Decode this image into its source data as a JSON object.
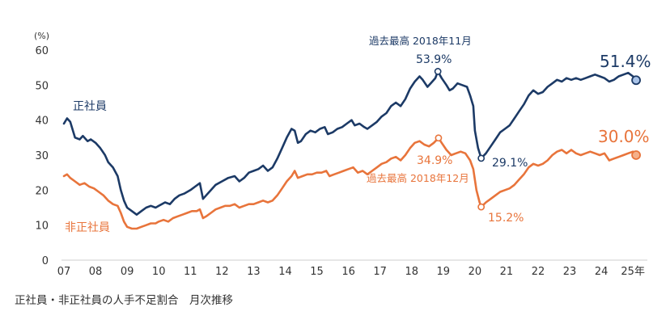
{
  "caption": "正社員・非正社員の人手不足割合　月次推移",
  "chart_data": {
    "type": "line",
    "title": "",
    "xlabel": "",
    "ylabel": "(%)",
    "ylim": [
      0,
      60
    ],
    "yticks": [
      0,
      10,
      20,
      30,
      40,
      50,
      60
    ],
    "xlim": [
      2007.0,
      2025.2
    ],
    "xticks": [
      {
        "value": 2007,
        "label": "07"
      },
      {
        "value": 2008,
        "label": "08"
      },
      {
        "value": 2009,
        "label": "09"
      },
      {
        "value": 2010,
        "label": "10"
      },
      {
        "value": 2011,
        "label": "11"
      },
      {
        "value": 2012,
        "label": "12"
      },
      {
        "value": 2013,
        "label": "13"
      },
      {
        "value": 2014,
        "label": "14"
      },
      {
        "value": 2015,
        "label": "15"
      },
      {
        "value": 2016,
        "label": "16"
      },
      {
        "value": 2017,
        "label": "17"
      },
      {
        "value": 2018,
        "label": "18"
      },
      {
        "value": 2019,
        "label": "19"
      },
      {
        "value": 2020,
        "label": "20"
      },
      {
        "value": 2021,
        "label": "21"
      },
      {
        "value": 2022,
        "label": "22"
      },
      {
        "value": 2023,
        "label": "23"
      },
      {
        "value": 2024,
        "label": "24"
      },
      {
        "value": 2025,
        "label": "25年"
      }
    ],
    "grid": false,
    "series": [
      {
        "name": "正社員",
        "color": "#1c3a66",
        "points": [
          [
            2007.0,
            39.0
          ],
          [
            2007.1,
            40.5
          ],
          [
            2007.2,
            39.5
          ],
          [
            2007.35,
            35.0
          ],
          [
            2007.5,
            34.5
          ],
          [
            2007.6,
            35.5
          ],
          [
            2007.75,
            34.0
          ],
          [
            2007.85,
            34.5
          ],
          [
            2008.0,
            33.5
          ],
          [
            2008.15,
            32.0
          ],
          [
            2008.3,
            30.0
          ],
          [
            2008.4,
            28.0
          ],
          [
            2008.55,
            26.5
          ],
          [
            2008.7,
            24.0
          ],
          [
            2008.8,
            20.0
          ],
          [
            2008.9,
            17.0
          ],
          [
            2009.0,
            15.0
          ],
          [
            2009.15,
            14.0
          ],
          [
            2009.3,
            13.0
          ],
          [
            2009.45,
            14.0
          ],
          [
            2009.6,
            15.0
          ],
          [
            2009.75,
            15.5
          ],
          [
            2009.9,
            15.0
          ],
          [
            2010.0,
            15.5
          ],
          [
            2010.2,
            16.5
          ],
          [
            2010.35,
            16.0
          ],
          [
            2010.5,
            17.5
          ],
          [
            2010.65,
            18.5
          ],
          [
            2010.8,
            19.0
          ],
          [
            2011.0,
            20.0
          ],
          [
            2011.15,
            21.0
          ],
          [
            2011.3,
            22.0
          ],
          [
            2011.4,
            17.5
          ],
          [
            2011.5,
            18.5
          ],
          [
            2011.65,
            20.0
          ],
          [
            2011.8,
            21.5
          ],
          [
            2012.0,
            22.5
          ],
          [
            2012.2,
            23.5
          ],
          [
            2012.4,
            24.0
          ],
          [
            2012.55,
            22.5
          ],
          [
            2012.7,
            23.5
          ],
          [
            2012.85,
            25.0
          ],
          [
            2013.0,
            25.5
          ],
          [
            2013.15,
            26.0
          ],
          [
            2013.3,
            27.0
          ],
          [
            2013.45,
            25.5
          ],
          [
            2013.6,
            26.5
          ],
          [
            2013.75,
            29.0
          ],
          [
            2013.9,
            32.0
          ],
          [
            2014.05,
            35.0
          ],
          [
            2014.2,
            37.5
          ],
          [
            2014.3,
            37.0
          ],
          [
            2014.4,
            33.5
          ],
          [
            2014.5,
            34.0
          ],
          [
            2014.65,
            36.0
          ],
          [
            2014.8,
            37.0
          ],
          [
            2014.95,
            36.5
          ],
          [
            2015.1,
            37.5
          ],
          [
            2015.25,
            38.0
          ],
          [
            2015.35,
            36.0
          ],
          [
            2015.5,
            36.5
          ],
          [
            2015.65,
            37.5
          ],
          [
            2015.8,
            38.0
          ],
          [
            2015.95,
            39.0
          ],
          [
            2016.1,
            40.0
          ],
          [
            2016.2,
            38.5
          ],
          [
            2016.35,
            39.0
          ],
          [
            2016.5,
            38.0
          ],
          [
            2016.6,
            37.5
          ],
          [
            2016.75,
            38.5
          ],
          [
            2016.9,
            39.5
          ],
          [
            2017.05,
            41.0
          ],
          [
            2017.2,
            42.0
          ],
          [
            2017.35,
            44.0
          ],
          [
            2017.5,
            45.0
          ],
          [
            2017.65,
            44.0
          ],
          [
            2017.8,
            46.0
          ],
          [
            2017.95,
            49.0
          ],
          [
            2018.1,
            51.0
          ],
          [
            2018.25,
            52.5
          ],
          [
            2018.35,
            51.5
          ],
          [
            2018.5,
            49.5
          ],
          [
            2018.6,
            50.5
          ],
          [
            2018.75,
            52.0
          ],
          [
            2018.83,
            53.9
          ],
          [
            2018.95,
            52.0
          ],
          [
            2019.1,
            50.0
          ],
          [
            2019.2,
            48.5
          ],
          [
            2019.3,
            49.0
          ],
          [
            2019.45,
            50.5
          ],
          [
            2019.6,
            50.0
          ],
          [
            2019.75,
            49.5
          ],
          [
            2019.85,
            47.0
          ],
          [
            2019.95,
            44.0
          ],
          [
            2020.0,
            37.0
          ],
          [
            2020.1,
            32.0
          ],
          [
            2020.2,
            29.1
          ],
          [
            2020.35,
            30.5
          ],
          [
            2020.5,
            32.5
          ],
          [
            2020.65,
            34.5
          ],
          [
            2020.8,
            36.5
          ],
          [
            2020.95,
            37.5
          ],
          [
            2021.1,
            38.5
          ],
          [
            2021.25,
            40.5
          ],
          [
            2021.4,
            42.5
          ],
          [
            2021.55,
            44.5
          ],
          [
            2021.7,
            47.0
          ],
          [
            2021.85,
            48.5
          ],
          [
            2022.0,
            47.5
          ],
          [
            2022.15,
            48.0
          ],
          [
            2022.3,
            49.5
          ],
          [
            2022.45,
            50.5
          ],
          [
            2022.6,
            51.5
          ],
          [
            2022.75,
            51.0
          ],
          [
            2022.9,
            52.0
          ],
          [
            2023.05,
            51.5
          ],
          [
            2023.2,
            52.0
          ],
          [
            2023.35,
            51.5
          ],
          [
            2023.5,
            52.0
          ],
          [
            2023.65,
            52.5
          ],
          [
            2023.8,
            53.0
          ],
          [
            2023.95,
            52.5
          ],
          [
            2024.1,
            52.0
          ],
          [
            2024.25,
            51.0
          ],
          [
            2024.4,
            51.5
          ],
          [
            2024.55,
            52.5
          ],
          [
            2024.7,
            53.0
          ],
          [
            2024.85,
            53.5
          ],
          [
            2025.0,
            52.5
          ],
          [
            2025.1,
            51.4
          ]
        ]
      },
      {
        "name": "非正社員",
        "color": "#e8743b",
        "points": [
          [
            2007.0,
            24.0
          ],
          [
            2007.1,
            24.5
          ],
          [
            2007.2,
            23.5
          ],
          [
            2007.35,
            22.5
          ],
          [
            2007.5,
            21.5
          ],
          [
            2007.65,
            22.0
          ],
          [
            2007.8,
            21.0
          ],
          [
            2007.95,
            20.5
          ],
          [
            2008.1,
            19.5
          ],
          [
            2008.25,
            18.5
          ],
          [
            2008.4,
            17.0
          ],
          [
            2008.55,
            16.0
          ],
          [
            2008.7,
            15.5
          ],
          [
            2008.8,
            13.5
          ],
          [
            2008.9,
            11.0
          ],
          [
            2009.0,
            9.5
          ],
          [
            2009.15,
            9.0
          ],
          [
            2009.3,
            9.0
          ],
          [
            2009.45,
            9.5
          ],
          [
            2009.6,
            10.0
          ],
          [
            2009.75,
            10.5
          ],
          [
            2009.9,
            10.5
          ],
          [
            2010.0,
            11.0
          ],
          [
            2010.15,
            11.5
          ],
          [
            2010.3,
            11.0
          ],
          [
            2010.45,
            12.0
          ],
          [
            2010.6,
            12.5
          ],
          [
            2010.75,
            13.0
          ],
          [
            2010.9,
            13.5
          ],
          [
            2011.05,
            14.0
          ],
          [
            2011.2,
            14.0
          ],
          [
            2011.3,
            14.5
          ],
          [
            2011.4,
            12.0
          ],
          [
            2011.5,
            12.5
          ],
          [
            2011.65,
            13.5
          ],
          [
            2011.8,
            14.5
          ],
          [
            2011.95,
            15.0
          ],
          [
            2012.1,
            15.5
          ],
          [
            2012.25,
            15.5
          ],
          [
            2012.4,
            16.0
          ],
          [
            2012.55,
            15.0
          ],
          [
            2012.7,
            15.5
          ],
          [
            2012.85,
            16.0
          ],
          [
            2013.0,
            16.0
          ],
          [
            2013.15,
            16.5
          ],
          [
            2013.3,
            17.0
          ],
          [
            2013.45,
            16.5
          ],
          [
            2013.6,
            17.0
          ],
          [
            2013.75,
            18.5
          ],
          [
            2013.9,
            20.5
          ],
          [
            2014.05,
            22.5
          ],
          [
            2014.2,
            24.0
          ],
          [
            2014.3,
            25.5
          ],
          [
            2014.4,
            23.5
          ],
          [
            2014.55,
            24.0
          ],
          [
            2014.7,
            24.5
          ],
          [
            2014.85,
            24.5
          ],
          [
            2015.0,
            25.0
          ],
          [
            2015.15,
            25.0
          ],
          [
            2015.3,
            25.5
          ],
          [
            2015.4,
            24.0
          ],
          [
            2015.55,
            24.5
          ],
          [
            2015.7,
            25.0
          ],
          [
            2015.85,
            25.5
          ],
          [
            2016.0,
            26.0
          ],
          [
            2016.15,
            26.5
          ],
          [
            2016.3,
            25.0
          ],
          [
            2016.45,
            25.5
          ],
          [
            2016.6,
            24.5
          ],
          [
            2016.75,
            25.5
          ],
          [
            2016.9,
            26.5
          ],
          [
            2017.05,
            27.5
          ],
          [
            2017.2,
            28.0
          ],
          [
            2017.35,
            29.0
          ],
          [
            2017.5,
            29.5
          ],
          [
            2017.65,
            28.5
          ],
          [
            2017.8,
            30.0
          ],
          [
            2017.95,
            32.0
          ],
          [
            2018.1,
            33.5
          ],
          [
            2018.25,
            34.0
          ],
          [
            2018.4,
            33.0
          ],
          [
            2018.55,
            32.5
          ],
          [
            2018.7,
            33.5
          ],
          [
            2018.85,
            34.9
          ],
          [
            2018.95,
            33.5
          ],
          [
            2019.1,
            31.5
          ],
          [
            2019.25,
            30.0
          ],
          [
            2019.4,
            30.5
          ],
          [
            2019.55,
            31.0
          ],
          [
            2019.7,
            30.5
          ],
          [
            2019.85,
            28.5
          ],
          [
            2019.95,
            26.0
          ],
          [
            2020.05,
            20.0
          ],
          [
            2020.15,
            16.5
          ],
          [
            2020.2,
            15.2
          ],
          [
            2020.35,
            16.5
          ],
          [
            2020.5,
            17.5
          ],
          [
            2020.65,
            18.5
          ],
          [
            2020.8,
            19.5
          ],
          [
            2020.95,
            20.0
          ],
          [
            2021.1,
            20.5
          ],
          [
            2021.25,
            21.5
          ],
          [
            2021.4,
            23.0
          ],
          [
            2021.55,
            24.5
          ],
          [
            2021.7,
            26.5
          ],
          [
            2021.85,
            27.5
          ],
          [
            2022.0,
            27.0
          ],
          [
            2022.15,
            27.5
          ],
          [
            2022.3,
            28.5
          ],
          [
            2022.45,
            30.0
          ],
          [
            2022.6,
            31.0
          ],
          [
            2022.75,
            31.5
          ],
          [
            2022.9,
            30.5
          ],
          [
            2023.05,
            31.5
          ],
          [
            2023.2,
            30.5
          ],
          [
            2023.35,
            30.0
          ],
          [
            2023.5,
            30.5
          ],
          [
            2023.65,
            31.0
          ],
          [
            2023.8,
            30.5
          ],
          [
            2023.95,
            30.0
          ],
          [
            2024.1,
            30.5
          ],
          [
            2024.25,
            28.5
          ],
          [
            2024.4,
            29.0
          ],
          [
            2024.55,
            29.5
          ],
          [
            2024.7,
            30.0
          ],
          [
            2024.85,
            30.5
          ],
          [
            2025.0,
            31.0
          ],
          [
            2025.1,
            30.0
          ]
        ]
      }
    ],
    "annotations": [
      {
        "key": "regular_peak",
        "title": "過去最高 2018年11月",
        "value_label": "53.9%",
        "x": 2018.83,
        "y": 53.9,
        "series": 0,
        "color": "#1c3a66"
      },
      {
        "key": "regular_low",
        "value_label": "29.1%",
        "x": 2020.2,
        "y": 29.1,
        "series": 0,
        "color": "#1c3a66"
      },
      {
        "key": "regular_last",
        "value_label": "51.4%",
        "x": 2025.1,
        "y": 51.4,
        "series": 0,
        "color": "#1c3a66"
      },
      {
        "key": "nonregular_peak",
        "title": "過去最高 2018年12月",
        "value_label": "34.9%",
        "x": 2018.85,
        "y": 34.9,
        "series": 1,
        "color": "#e8743b"
      },
      {
        "key": "nonregular_low",
        "value_label": "15.2%",
        "x": 2020.2,
        "y": 15.2,
        "series": 1,
        "color": "#e8743b"
      },
      {
        "key": "nonregular_last",
        "value_label": "30.0%",
        "x": 2025.1,
        "y": 30.0,
        "series": 1,
        "color": "#e8743b"
      }
    ]
  }
}
